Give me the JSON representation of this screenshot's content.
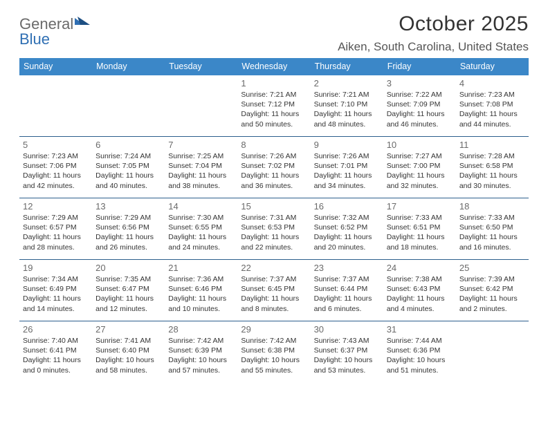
{
  "logo": {
    "general": "General",
    "blue": "Blue"
  },
  "header": {
    "month_title": "October 2025",
    "location": "Aiken, South Carolina, United States"
  },
  "colors": {
    "header_bg": "#3b87c8",
    "header_text": "#ffffff",
    "week_border": "#2b5e8c",
    "logo_blue": "#2f6fb3",
    "logo_gray": "#6a6a6a",
    "text": "#333333",
    "daynum": "#6a6a6a",
    "background": "#ffffff"
  },
  "day_names": [
    "Sunday",
    "Monday",
    "Tuesday",
    "Wednesday",
    "Thursday",
    "Friday",
    "Saturday"
  ],
  "weeks": [
    [
      {
        "day": "",
        "sunrise": "",
        "sunset": "",
        "daylight": ""
      },
      {
        "day": "",
        "sunrise": "",
        "sunset": "",
        "daylight": ""
      },
      {
        "day": "",
        "sunrise": "",
        "sunset": "",
        "daylight": ""
      },
      {
        "day": "1",
        "sunrise": "Sunrise: 7:21 AM",
        "sunset": "Sunset: 7:12 PM",
        "daylight": "Daylight: 11 hours and 50 minutes."
      },
      {
        "day": "2",
        "sunrise": "Sunrise: 7:21 AM",
        "sunset": "Sunset: 7:10 PM",
        "daylight": "Daylight: 11 hours and 48 minutes."
      },
      {
        "day": "3",
        "sunrise": "Sunrise: 7:22 AM",
        "sunset": "Sunset: 7:09 PM",
        "daylight": "Daylight: 11 hours and 46 minutes."
      },
      {
        "day": "4",
        "sunrise": "Sunrise: 7:23 AM",
        "sunset": "Sunset: 7:08 PM",
        "daylight": "Daylight: 11 hours and 44 minutes."
      }
    ],
    [
      {
        "day": "5",
        "sunrise": "Sunrise: 7:23 AM",
        "sunset": "Sunset: 7:06 PM",
        "daylight": "Daylight: 11 hours and 42 minutes."
      },
      {
        "day": "6",
        "sunrise": "Sunrise: 7:24 AM",
        "sunset": "Sunset: 7:05 PM",
        "daylight": "Daylight: 11 hours and 40 minutes."
      },
      {
        "day": "7",
        "sunrise": "Sunrise: 7:25 AM",
        "sunset": "Sunset: 7:04 PM",
        "daylight": "Daylight: 11 hours and 38 minutes."
      },
      {
        "day": "8",
        "sunrise": "Sunrise: 7:26 AM",
        "sunset": "Sunset: 7:02 PM",
        "daylight": "Daylight: 11 hours and 36 minutes."
      },
      {
        "day": "9",
        "sunrise": "Sunrise: 7:26 AM",
        "sunset": "Sunset: 7:01 PM",
        "daylight": "Daylight: 11 hours and 34 minutes."
      },
      {
        "day": "10",
        "sunrise": "Sunrise: 7:27 AM",
        "sunset": "Sunset: 7:00 PM",
        "daylight": "Daylight: 11 hours and 32 minutes."
      },
      {
        "day": "11",
        "sunrise": "Sunrise: 7:28 AM",
        "sunset": "Sunset: 6:58 PM",
        "daylight": "Daylight: 11 hours and 30 minutes."
      }
    ],
    [
      {
        "day": "12",
        "sunrise": "Sunrise: 7:29 AM",
        "sunset": "Sunset: 6:57 PM",
        "daylight": "Daylight: 11 hours and 28 minutes."
      },
      {
        "day": "13",
        "sunrise": "Sunrise: 7:29 AM",
        "sunset": "Sunset: 6:56 PM",
        "daylight": "Daylight: 11 hours and 26 minutes."
      },
      {
        "day": "14",
        "sunrise": "Sunrise: 7:30 AM",
        "sunset": "Sunset: 6:55 PM",
        "daylight": "Daylight: 11 hours and 24 minutes."
      },
      {
        "day": "15",
        "sunrise": "Sunrise: 7:31 AM",
        "sunset": "Sunset: 6:53 PM",
        "daylight": "Daylight: 11 hours and 22 minutes."
      },
      {
        "day": "16",
        "sunrise": "Sunrise: 7:32 AM",
        "sunset": "Sunset: 6:52 PM",
        "daylight": "Daylight: 11 hours and 20 minutes."
      },
      {
        "day": "17",
        "sunrise": "Sunrise: 7:33 AM",
        "sunset": "Sunset: 6:51 PM",
        "daylight": "Daylight: 11 hours and 18 minutes."
      },
      {
        "day": "18",
        "sunrise": "Sunrise: 7:33 AM",
        "sunset": "Sunset: 6:50 PM",
        "daylight": "Daylight: 11 hours and 16 minutes."
      }
    ],
    [
      {
        "day": "19",
        "sunrise": "Sunrise: 7:34 AM",
        "sunset": "Sunset: 6:49 PM",
        "daylight": "Daylight: 11 hours and 14 minutes."
      },
      {
        "day": "20",
        "sunrise": "Sunrise: 7:35 AM",
        "sunset": "Sunset: 6:47 PM",
        "daylight": "Daylight: 11 hours and 12 minutes."
      },
      {
        "day": "21",
        "sunrise": "Sunrise: 7:36 AM",
        "sunset": "Sunset: 6:46 PM",
        "daylight": "Daylight: 11 hours and 10 minutes."
      },
      {
        "day": "22",
        "sunrise": "Sunrise: 7:37 AM",
        "sunset": "Sunset: 6:45 PM",
        "daylight": "Daylight: 11 hours and 8 minutes."
      },
      {
        "day": "23",
        "sunrise": "Sunrise: 7:37 AM",
        "sunset": "Sunset: 6:44 PM",
        "daylight": "Daylight: 11 hours and 6 minutes."
      },
      {
        "day": "24",
        "sunrise": "Sunrise: 7:38 AM",
        "sunset": "Sunset: 6:43 PM",
        "daylight": "Daylight: 11 hours and 4 minutes."
      },
      {
        "day": "25",
        "sunrise": "Sunrise: 7:39 AM",
        "sunset": "Sunset: 6:42 PM",
        "daylight": "Daylight: 11 hours and 2 minutes."
      }
    ],
    [
      {
        "day": "26",
        "sunrise": "Sunrise: 7:40 AM",
        "sunset": "Sunset: 6:41 PM",
        "daylight": "Daylight: 11 hours and 0 minutes."
      },
      {
        "day": "27",
        "sunrise": "Sunrise: 7:41 AM",
        "sunset": "Sunset: 6:40 PM",
        "daylight": "Daylight: 10 hours and 58 minutes."
      },
      {
        "day": "28",
        "sunrise": "Sunrise: 7:42 AM",
        "sunset": "Sunset: 6:39 PM",
        "daylight": "Daylight: 10 hours and 57 minutes."
      },
      {
        "day": "29",
        "sunrise": "Sunrise: 7:42 AM",
        "sunset": "Sunset: 6:38 PM",
        "daylight": "Daylight: 10 hours and 55 minutes."
      },
      {
        "day": "30",
        "sunrise": "Sunrise: 7:43 AM",
        "sunset": "Sunset: 6:37 PM",
        "daylight": "Daylight: 10 hours and 53 minutes."
      },
      {
        "day": "31",
        "sunrise": "Sunrise: 7:44 AM",
        "sunset": "Sunset: 6:36 PM",
        "daylight": "Daylight: 10 hours and 51 minutes."
      },
      {
        "day": "",
        "sunrise": "",
        "sunset": "",
        "daylight": ""
      }
    ]
  ]
}
